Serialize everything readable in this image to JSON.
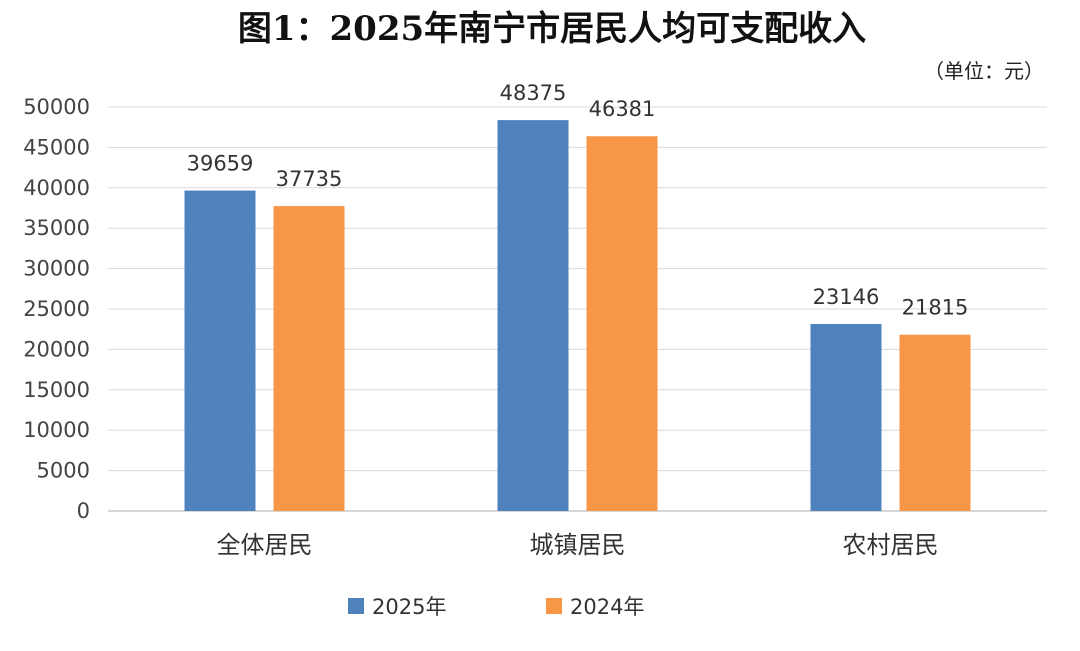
{
  "chart_data": {
    "type": "bar",
    "title": "图1：2025年南宁市居民人均可支配收入",
    "unit_label": "（单位：元）",
    "categories": [
      "全体居民",
      "城镇居民",
      "农村居民"
    ],
    "series": [
      {
        "name": "2025年",
        "color": "#4f81bd",
        "values": [
          39659,
          48375,
          23146
        ]
      },
      {
        "name": "2024年",
        "color": "#f79646",
        "values": [
          37735,
          46381,
          21815
        ]
      }
    ],
    "ylim": [
      0,
      50000
    ],
    "yticks": [
      "0",
      "5000",
      "10000",
      "15000",
      "20000",
      "25000",
      "30000",
      "35000",
      "40000",
      "45000",
      "50000"
    ],
    "grid": true,
    "legend_position": "bottom"
  }
}
